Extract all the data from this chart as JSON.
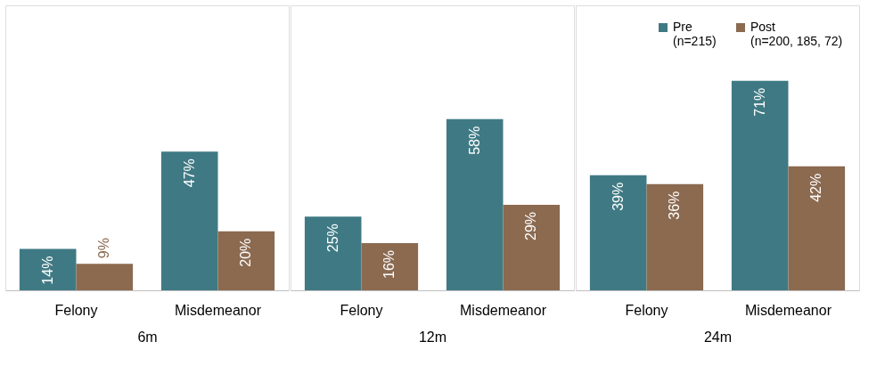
{
  "chart_data": [
    {
      "type": "bar",
      "xlabel": "6m",
      "categories": [
        "Felony",
        "Misdemeanor"
      ],
      "series": [
        {
          "color": "#3f7a84",
          "values": [
            14,
            47
          ],
          "value_labels": [
            "14%",
            "47%"
          ]
        },
        {
          "color": "#8b6a50",
          "values": [
            9,
            20
          ],
          "value_labels": [
            "9%",
            "20%"
          ]
        }
      ]
    },
    {
      "type": "bar",
      "xlabel": "12m",
      "categories": [
        "Felony",
        "Misdemeanor"
      ],
      "series": [
        {
          "color": "#3f7a84",
          "values": [
            25,
            58
          ],
          "value_labels": [
            "25%",
            "58%"
          ]
        },
        {
          "color": "#8b6a50",
          "values": [
            16,
            29
          ],
          "value_labels": [
            "16%",
            "29%"
          ]
        }
      ]
    },
    {
      "type": "bar",
      "xlabel": "24m",
      "categories": [
        "Felony",
        "Misdemeanor"
      ],
      "legend": "top right",
      "series": [
        {
          "name": "Pre\n(n=215)",
          "color": "#3f7a84",
          "values": [
            39,
            71
          ],
          "value_labels": [
            "39%",
            "71%"
          ]
        },
        {
          "name": "Post\n(n=200, 185, 72)",
          "color": "#8b6a50",
          "values": [
            36,
            42
          ],
          "value_labels": [
            "36%",
            "42%"
          ]
        }
      ]
    }
  ]
}
